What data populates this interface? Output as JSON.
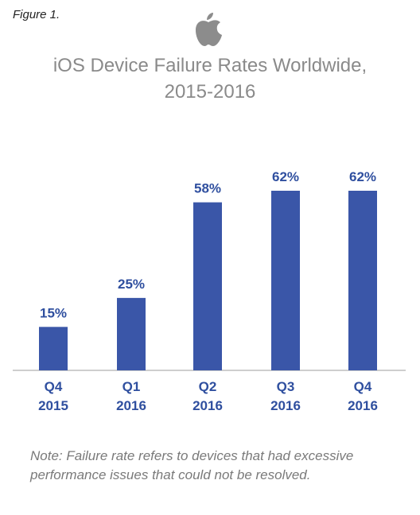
{
  "figure_label": "Figure 1.",
  "logo": {
    "icon": "apple-logo-icon",
    "color": "#8c8c8c"
  },
  "chart_data": {
    "type": "bar",
    "title": "iOS Device Failure Rates Worldwide,",
    "subtitle": "2015-2016",
    "categories": [
      {
        "line1": "Q4",
        "line2": "2015"
      },
      {
        "line1": "Q1",
        "line2": "2016"
      },
      {
        "line1": "Q2",
        "line2": "2016"
      },
      {
        "line1": "Q3",
        "line2": "2016"
      },
      {
        "line1": "Q4",
        "line2": "2016"
      }
    ],
    "values": [
      15,
      25,
      58,
      62,
      62
    ],
    "data_labels": [
      "15%",
      "25%",
      "58%",
      "62%",
      "62%"
    ],
    "unit": "%",
    "ylim": [
      0,
      70
    ],
    "grid": false,
    "legend": "none",
    "bar_color": "#3a56a8",
    "label_color": "#2f4f9f",
    "axis_color": "#bdbdbd"
  },
  "note": "Note: Failure rate refers to devices that had excessive performance issues that could not be resolved."
}
